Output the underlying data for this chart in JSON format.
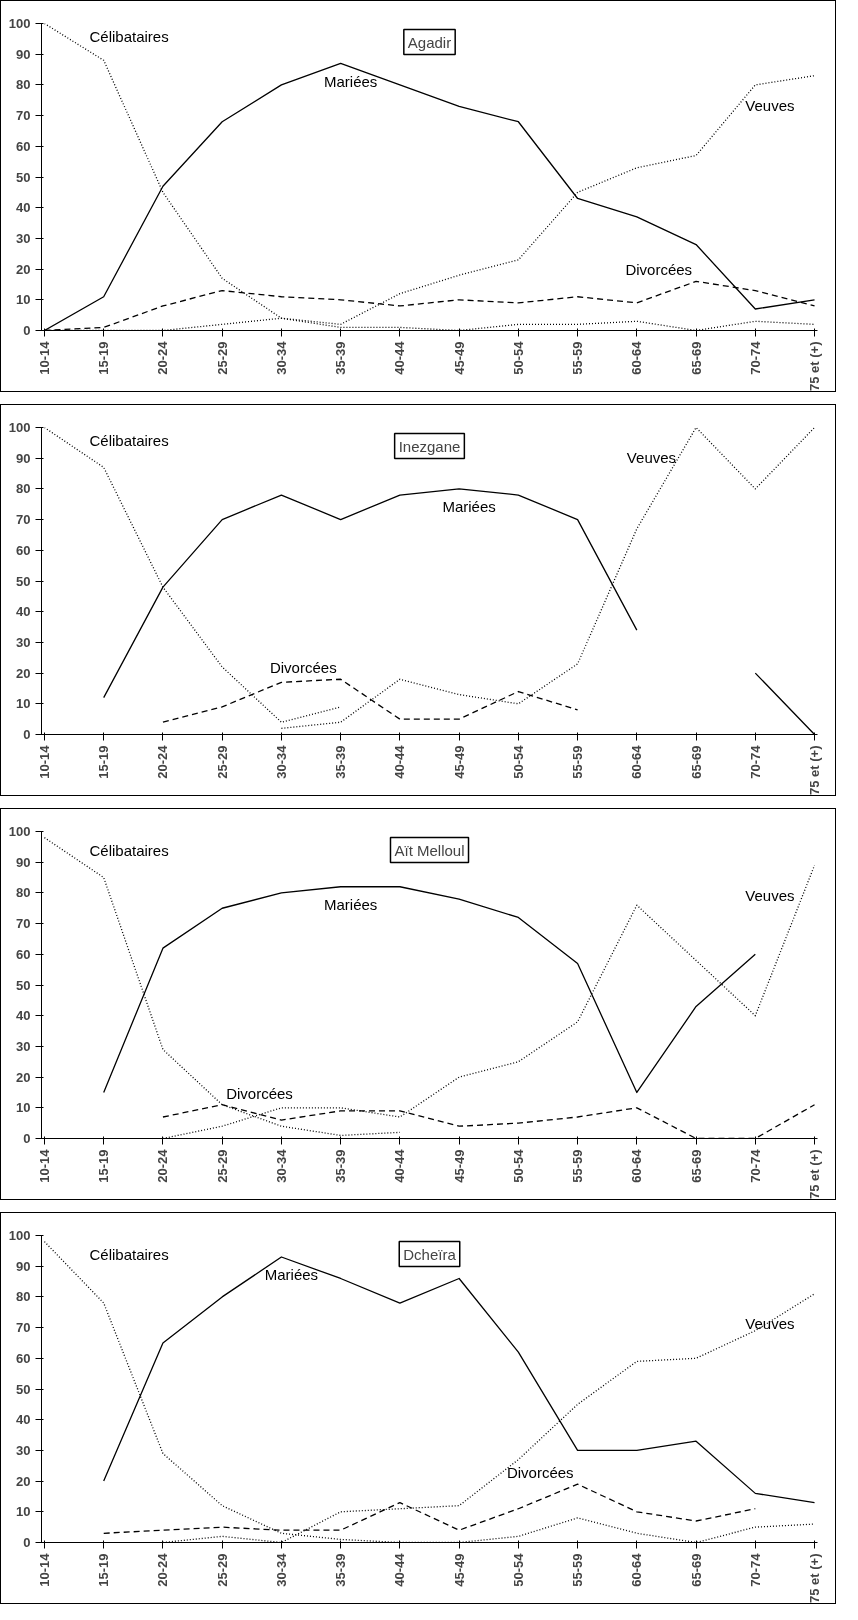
{
  "chart_data": [
    {
      "type": "line",
      "title": "Agadir",
      "categories": [
        "10-14",
        "15-19",
        "20-24",
        "25-29",
        "30-34",
        "35-39",
        "40-44",
        "45-49",
        "50-54",
        "55-59",
        "60-64",
        "65-69",
        "70-74",
        "75 et (+)"
      ],
      "ylim": [
        0,
        100
      ],
      "yticks": [
        0,
        10,
        20,
        30,
        40,
        50,
        60,
        70,
        80,
        90,
        100
      ],
      "grid": false,
      "series": [
        {
          "name": "Célibataires",
          "color": "#000000",
          "line_style": "dotted",
          "values": [
            100,
            88,
            45,
            17,
            4,
            1,
            1,
            0,
            2,
            2,
            3,
            0,
            3,
            2
          ]
        },
        {
          "name": "Mariées",
          "color": "#000000",
          "line_style": "solid",
          "values": [
            0,
            11,
            47,
            68,
            80,
            87,
            80,
            73,
            68,
            43,
            37,
            28,
            7,
            10
          ]
        },
        {
          "name": "Veuves",
          "color": "#000000",
          "line_style": "dotted",
          "values": [
            0,
            0,
            0,
            2,
            4,
            2,
            12,
            18,
            23,
            45,
            53,
            57,
            80,
            83
          ]
        },
        {
          "name": "Divorcées",
          "color": "#000000",
          "line_style": "dashed",
          "values": [
            0,
            1,
            8,
            13,
            11,
            10,
            8,
            10,
            9,
            11,
            9,
            16,
            13,
            8
          ]
        }
      ]
    },
    {
      "type": "line",
      "title": "Inezgane",
      "categories": [
        "10-14",
        "15-19",
        "20-24",
        "25-29",
        "30-34",
        "35-39",
        "40-44",
        "45-49",
        "50-54",
        "55-59",
        "60-64",
        "65-69",
        "70-74",
        "75 et (+)"
      ],
      "ylim": [
        0,
        100
      ],
      "yticks": [
        0,
        10,
        20,
        30,
        40,
        50,
        60,
        70,
        80,
        90,
        100
      ],
      "grid": false,
      "series": [
        {
          "name": "Célibataires",
          "color": "#000000",
          "line_style": "dotted",
          "values": [
            100,
            87,
            48,
            22,
            4,
            9,
            null,
            null,
            null,
            null,
            null,
            null,
            null,
            null
          ]
        },
        {
          "name": "Mariées",
          "color": "#000000",
          "line_style": "solid",
          "values": [
            null,
            12,
            48,
            70,
            78,
            70,
            78,
            80,
            78,
            70,
            34,
            null,
            20,
            0
          ]
        },
        {
          "name": "Veuves",
          "color": "#000000",
          "line_style": "dotted",
          "values": [
            null,
            null,
            null,
            null,
            2,
            4,
            18,
            13,
            10,
            23,
            67,
            100,
            80,
            100
          ]
        },
        {
          "name": "Divorcées",
          "color": "#000000",
          "line_style": "dashed",
          "values": [
            null,
            null,
            4,
            9,
            17,
            18,
            5,
            5,
            14,
            8,
            null,
            null,
            null,
            null
          ]
        }
      ]
    },
    {
      "type": "line",
      "title": "Aït Melloul",
      "categories": [
        "10-14",
        "15-19",
        "20-24",
        "25-29",
        "30-34",
        "35-39",
        "40-44",
        "45-49",
        "50-54",
        "55-59",
        "60-64",
        "65-69",
        "70-74",
        "75 et (+)"
      ],
      "ylim": [
        0,
        100
      ],
      "yticks": [
        0,
        10,
        20,
        30,
        40,
        50,
        60,
        70,
        80,
        90,
        100
      ],
      "grid": false,
      "series": [
        {
          "name": "Célibataires",
          "color": "#000000",
          "line_style": "dotted",
          "values": [
            98,
            85,
            29,
            11,
            4,
            1,
            2,
            null,
            null,
            null,
            null,
            null,
            null,
            null
          ]
        },
        {
          "name": "Mariées",
          "color": "#000000",
          "line_style": "solid",
          "values": [
            null,
            15,
            62,
            75,
            80,
            82,
            82,
            78,
            72,
            57,
            15,
            43,
            60,
            null
          ]
        },
        {
          "name": "Veuves",
          "color": "#000000",
          "line_style": "dotted",
          "values": [
            null,
            null,
            0,
            4,
            10,
            10,
            7,
            20,
            25,
            38,
            76,
            58,
            40,
            89
          ]
        },
        {
          "name": "Divorcées",
          "color": "#000000",
          "line_style": "dashed",
          "values": [
            null,
            null,
            7,
            11,
            6,
            9,
            9,
            4,
            5,
            7,
            10,
            0,
            0,
            11
          ]
        }
      ]
    },
    {
      "type": "line",
      "title": "Dcheïra",
      "categories": [
        "10-14",
        "15-19",
        "20-24",
        "25-29",
        "30-34",
        "35-39",
        "40-44",
        "45-49",
        "50-54",
        "55-59",
        "60-64",
        "65-69",
        "70-74",
        "75 et (+)"
      ],
      "ylim": [
        0,
        100
      ],
      "yticks": [
        0,
        10,
        20,
        30,
        40,
        50,
        60,
        70,
        80,
        90,
        100
      ],
      "grid": false,
      "series": [
        {
          "name": "Célibataires",
          "color": "#000000",
          "line_style": "dotted",
          "values": [
            98,
            78,
            29,
            12,
            3,
            1,
            0,
            0,
            2,
            8,
            3,
            0,
            5,
            6
          ]
        },
        {
          "name": "Mariées",
          "color": "#000000",
          "line_style": "solid",
          "values": [
            null,
            20,
            65,
            80,
            93,
            86,
            78,
            86,
            62,
            30,
            30,
            33,
            16,
            13
          ]
        },
        {
          "name": "Veuves",
          "color": "#000000",
          "line_style": "dotted",
          "values": [
            null,
            null,
            0,
            2,
            0,
            10,
            11,
            12,
            27,
            45,
            59,
            60,
            69,
            81
          ]
        },
        {
          "name": "Divorcées",
          "color": "#000000",
          "line_style": "dashed",
          "values": [
            null,
            3,
            4,
            5,
            4,
            4,
            13,
            4,
            11,
            19,
            10,
            7,
            11,
            null
          ]
        }
      ]
    }
  ]
}
